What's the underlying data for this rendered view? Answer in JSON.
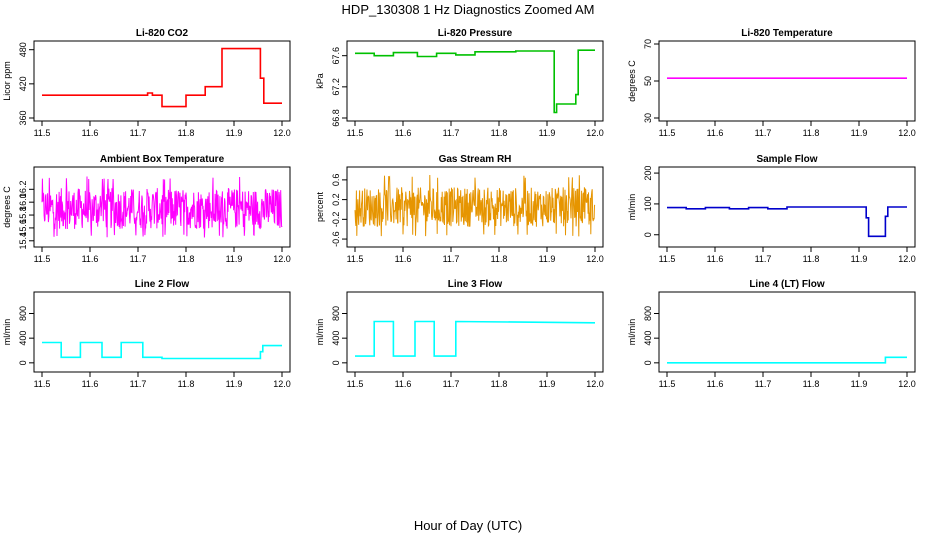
{
  "title": "HDP_130308  1 Hz Diagnostics Zoomed AM",
  "xlabel": "Hour of Day (UTC)",
  "chart_data": [
    {
      "type": "line",
      "title": "Li-820 CO2",
      "ylabel": "Licor ppm",
      "xlim": [
        11.5,
        12.0
      ],
      "ylim": [
        360,
        490
      ],
      "xticks": [
        "11.5",
        "11.6",
        "11.7",
        "11.8",
        "11.9",
        "12.0"
      ],
      "yticks": [
        "360",
        "420",
        "480"
      ],
      "color": "#ff0000",
      "series": [
        {
          "x": [
            11.5,
            11.72,
            11.72,
            11.73,
            11.73,
            11.75,
            11.75,
            11.8,
            11.8,
            11.84,
            11.84,
            11.875,
            11.875,
            11.955,
            11.955,
            11.962,
            11.962,
            12.0
          ],
          "y": [
            400,
            400,
            404,
            404,
            400,
            400,
            380,
            380,
            400,
            400,
            415,
            415,
            482,
            482,
            430,
            430,
            386,
            386
          ]
        }
      ]
    },
    {
      "type": "line",
      "title": "Li-820 Pressure",
      "ylabel": "kPa",
      "xlim": [
        11.5,
        12.0
      ],
      "ylim": [
        66.8,
        67.75
      ],
      "xticks": [
        "11.5",
        "11.6",
        "11.7",
        "11.8",
        "11.9",
        "12.0"
      ],
      "yticks": [
        "66.8",
        "67.2",
        "67.6"
      ],
      "color": "#00c000",
      "series": [
        {
          "x": [
            11.5,
            11.54,
            11.54,
            11.58,
            11.58,
            11.63,
            11.63,
            11.67,
            11.67,
            11.71,
            11.71,
            11.75,
            11.75,
            11.835,
            11.835,
            11.915,
            11.915,
            11.92,
            11.92,
            11.96,
            11.96,
            11.965,
            11.965,
            12.0
          ],
          "y": [
            67.63,
            67.63,
            67.6,
            67.6,
            67.64,
            67.64,
            67.59,
            67.59,
            67.63,
            67.63,
            67.61,
            67.61,
            67.65,
            67.65,
            67.66,
            67.66,
            66.87,
            66.87,
            66.98,
            66.98,
            67.1,
            67.1,
            67.67,
            67.67
          ]
        }
      ]
    },
    {
      "type": "line",
      "title": "Li-820 Temperature",
      "ylabel": "degrees C",
      "xlim": [
        11.5,
        12.0
      ],
      "ylim": [
        30,
        70
      ],
      "xticks": [
        "11.5",
        "11.6",
        "11.7",
        "11.8",
        "11.9",
        "12.0"
      ],
      "yticks": [
        "30",
        "50",
        "70"
      ],
      "color": "#ff00ff",
      "series": [
        {
          "x": [
            11.5,
            12.0
          ],
          "y": [
            51.5,
            51.5
          ]
        }
      ]
    },
    {
      "type": "line",
      "title": "Ambient Box Temperature",
      "ylabel": "degrees C",
      "xlim": [
        11.5,
        12.0
      ],
      "ylim": [
        15.35,
        16.5
      ],
      "xticks": [
        "11.5",
        "11.6",
        "11.7",
        "11.8",
        "11.9",
        "12.0"
      ],
      "yticks": [
        "15.4",
        "15.6",
        "15.8",
        "16.0",
        "16.2"
      ],
      "color": "#ff00ff",
      "noise": {
        "center": 15.9,
        "amplitude": 0.32,
        "spike_hi": 16.4,
        "spike_lo": 15.45,
        "density": 560
      }
    },
    {
      "type": "line",
      "title": "Gas Stream RH",
      "ylabel": "percent",
      "xlim": [
        11.5,
        12.0
      ],
      "ylim": [
        -0.7,
        0.8
      ],
      "xticks": [
        "11.5",
        "11.6",
        "11.7",
        "11.8",
        "11.9",
        "12.0"
      ],
      "yticks": [
        "-0.6",
        "-0.2",
        "0.2",
        "0.6"
      ],
      "color": "#e69500",
      "noise": {
        "center": 0.05,
        "amplitude": 0.4,
        "spike_hi": 0.7,
        "spike_lo": -0.55,
        "density": 520
      }
    },
    {
      "type": "line",
      "title": "Sample Flow",
      "ylabel": "ml/min",
      "xlim": [
        11.5,
        12.0
      ],
      "ylim": [
        -30,
        210
      ],
      "xticks": [
        "11.5",
        "11.6",
        "11.7",
        "11.8",
        "11.9",
        "12.0"
      ],
      "yticks": [
        "0",
        "100",
        "200"
      ],
      "color": "#0000cc",
      "series": [
        {
          "x": [
            11.5,
            11.54,
            11.54,
            11.58,
            11.58,
            11.63,
            11.63,
            11.67,
            11.67,
            11.71,
            11.71,
            11.75,
            11.75,
            11.915,
            11.915,
            11.92,
            11.92,
            11.955,
            11.955,
            11.96,
            11.96,
            12.0
          ],
          "y": [
            88,
            88,
            84,
            84,
            88,
            88,
            84,
            84,
            88,
            88,
            84,
            84,
            90,
            90,
            55,
            55,
            -5,
            -5,
            60,
            60,
            90,
            90
          ]
        }
      ]
    },
    {
      "type": "line",
      "title": "Line 2 Flow",
      "ylabel": "ml/min",
      "xlim": [
        11.5,
        12.0
      ],
      "ylim": [
        -100,
        1100
      ],
      "xticks": [
        "11.5",
        "11.6",
        "11.7",
        "11.8",
        "11.9",
        "12.0"
      ],
      "yticks": [
        "0",
        "400",
        "800"
      ],
      "color": "#00ffff",
      "series": [
        {
          "x": [
            11.5,
            11.54,
            11.54,
            11.58,
            11.58,
            11.625,
            11.625,
            11.665,
            11.665,
            11.71,
            11.71,
            11.75,
            11.75,
            11.955,
            11.955,
            11.96,
            11.96,
            12.0
          ],
          "y": [
            330,
            330,
            90,
            90,
            330,
            330,
            90,
            90,
            330,
            330,
            90,
            90,
            70,
            70,
            180,
            180,
            280,
            280
          ]
        }
      ]
    },
    {
      "type": "line",
      "title": "Line 3 Flow",
      "ylabel": "ml/min",
      "xlim": [
        11.5,
        12.0
      ],
      "ylim": [
        -100,
        1100
      ],
      "xticks": [
        "11.5",
        "11.6",
        "11.7",
        "11.8",
        "11.9",
        "12.0"
      ],
      "yticks": [
        "0",
        "400",
        "800"
      ],
      "color": "#00ffff",
      "series": [
        {
          "x": [
            11.5,
            11.54,
            11.54,
            11.58,
            11.58,
            11.625,
            11.625,
            11.665,
            11.665,
            11.71,
            11.71,
            12.0
          ],
          "y": [
            110,
            110,
            670,
            670,
            110,
            110,
            670,
            670,
            110,
            110,
            670,
            650
          ]
        }
      ]
    },
    {
      "type": "line",
      "title": "Line 4 (LT) Flow",
      "ylabel": "ml/min",
      "xlim": [
        11.5,
        12.0
      ],
      "ylim": [
        -100,
        1100
      ],
      "xticks": [
        "11.5",
        "11.6",
        "11.7",
        "11.8",
        "11.9",
        "12.0"
      ],
      "yticks": [
        "0",
        "400",
        "800"
      ],
      "color": "#00ffff",
      "series": [
        {
          "x": [
            11.5,
            11.955,
            11.955,
            12.0
          ],
          "y": [
            0,
            0,
            90,
            90
          ]
        }
      ]
    }
  ]
}
